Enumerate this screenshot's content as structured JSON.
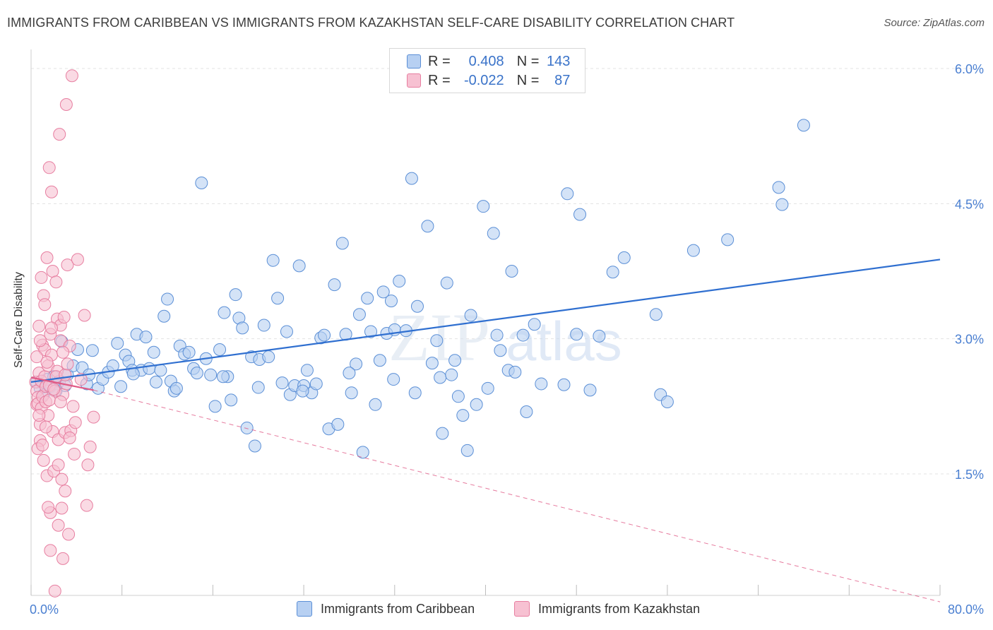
{
  "title": "IMMIGRANTS FROM CARIBBEAN VS IMMIGRANTS FROM KAZAKHSTAN SELF-CARE DISABILITY CORRELATION CHART",
  "source": "Source: ZipAtlas.com",
  "watermark": {
    "zip": "ZIP",
    "atlas": "atlas"
  },
  "colors": {
    "blue_fill": "#b7d0f2",
    "blue_stroke": "#5b8fd6",
    "blue_line": "#2f6fd0",
    "pink_fill": "#f7c1d2",
    "pink_stroke": "#e77ea0",
    "pink_line": "#e05a86",
    "axis_text": "#4a7fd1",
    "grid": "#e3e3e3"
  },
  "legend": {
    "rows": [
      {
        "r_label": "R =",
        "r_value": "0.408",
        "n_label": "N =",
        "n_value": "143",
        "color": "#b7d0f2",
        "stroke": "#5b8fd6"
      },
      {
        "r_label": "R =",
        "r_value": "-0.022",
        "n_label": "N =",
        "n_value": "87",
        "color": "#f7c1d2",
        "stroke": "#e77ea0"
      }
    ]
  },
  "bottom_legend": [
    {
      "label": "Immigrants from Caribbean",
      "color": "#b7d0f2",
      "stroke": "#5b8fd6"
    },
    {
      "label": "Immigrants from Kazakhstan",
      "color": "#f7c1d2",
      "stroke": "#e77ea0"
    }
  ],
  "chart_data": {
    "type": "scatter",
    "title": "IMMIGRANTS FROM CARIBBEAN VS IMMIGRANTS FROM KAZAKHSTAN SELF-CARE DISABILITY CORRELATION CHART",
    "xlabel": "",
    "ylabel": "Self-Care Disability",
    "xlim": [
      0,
      80
    ],
    "ylim": [
      0.0,
      6.3
    ],
    "x_tick_labels": [
      "0.0%",
      "80.0%"
    ],
    "y_ticks": [
      1.5,
      3.0,
      4.5,
      6.0
    ],
    "y_tick_labels": [
      "1.5%",
      "3.0%",
      "4.5%",
      "6.0%"
    ],
    "grid": true,
    "legend_position": "top-center",
    "series": [
      {
        "name": "Immigrants from Caribbean",
        "trendline": {
          "x": [
            0,
            80
          ],
          "y": [
            2.52,
            3.88
          ]
        },
        "points": [
          [
            0.5,
            2.52
          ],
          [
            0.8,
            2.45
          ],
          [
            1.1,
            2.38
          ],
          [
            1.4,
            2.55
          ],
          [
            1.7,
            2.47
          ],
          [
            2.0,
            2.58
          ],
          [
            2.3,
            2.5
          ],
          [
            2.7,
            2.97
          ],
          [
            3.2,
            2.6
          ],
          [
            3.7,
            2.7
          ],
          [
            4.1,
            2.88
          ],
          [
            4.5,
            2.68
          ],
          [
            4.9,
            2.5
          ],
          [
            5.4,
            2.87
          ],
          [
            5.9,
            2.45
          ],
          [
            6.3,
            2.55
          ],
          [
            6.8,
            2.63
          ],
          [
            7.2,
            2.7
          ],
          [
            7.6,
            2.95
          ],
          [
            7.9,
            2.47
          ],
          [
            8.3,
            2.82
          ],
          [
            8.6,
            2.75
          ],
          [
            8.9,
            2.65
          ],
          [
            9.3,
            3.05
          ],
          [
            9.7,
            2.65
          ],
          [
            10.1,
            3.02
          ],
          [
            10.4,
            2.67
          ],
          [
            10.8,
            2.85
          ],
          [
            11.0,
            2.52
          ],
          [
            11.4,
            2.65
          ],
          [
            11.7,
            3.25
          ],
          [
            12.0,
            3.44
          ],
          [
            12.3,
            2.53
          ],
          [
            12.6,
            2.42
          ],
          [
            13.1,
            2.92
          ],
          [
            13.5,
            2.83
          ],
          [
            13.9,
            2.85
          ],
          [
            14.3,
            2.67
          ],
          [
            14.6,
            2.62
          ],
          [
            15.0,
            4.73
          ],
          [
            15.4,
            2.78
          ],
          [
            15.8,
            2.6
          ],
          [
            16.2,
            2.25
          ],
          [
            16.6,
            2.88
          ],
          [
            17.0,
            3.29
          ],
          [
            17.3,
            2.58
          ],
          [
            17.6,
            2.32
          ],
          [
            18.0,
            3.49
          ],
          [
            18.3,
            3.23
          ],
          [
            18.6,
            3.12
          ],
          [
            19.0,
            2.01
          ],
          [
            19.4,
            2.8
          ],
          [
            19.7,
            1.81
          ],
          [
            20.1,
            2.77
          ],
          [
            20.5,
            3.15
          ],
          [
            20.9,
            2.8
          ],
          [
            21.3,
            3.87
          ],
          [
            21.7,
            3.45
          ],
          [
            22.1,
            2.51
          ],
          [
            22.5,
            3.08
          ],
          [
            22.8,
            2.38
          ],
          [
            23.2,
            2.48
          ],
          [
            23.6,
            3.81
          ],
          [
            24.0,
            2.48
          ],
          [
            24.3,
            2.65
          ],
          [
            24.7,
            2.4
          ],
          [
            25.1,
            2.5
          ],
          [
            25.5,
            3.01
          ],
          [
            25.8,
            3.04
          ],
          [
            26.2,
            2.0
          ],
          [
            26.7,
            3.6
          ],
          [
            27.0,
            2.05
          ],
          [
            27.4,
            4.06
          ],
          [
            27.7,
            3.05
          ],
          [
            28.2,
            2.4
          ],
          [
            28.6,
            2.72
          ],
          [
            28.9,
            3.27
          ],
          [
            29.2,
            1.74
          ],
          [
            29.6,
            3.45
          ],
          [
            29.9,
            3.08
          ],
          [
            30.3,
            2.27
          ],
          [
            30.7,
            2.76
          ],
          [
            31.0,
            3.52
          ],
          [
            31.3,
            3.06
          ],
          [
            31.7,
            3.42
          ],
          [
            32.0,
            3.1
          ],
          [
            32.4,
            3.64
          ],
          [
            33.0,
            3.09
          ],
          [
            33.5,
            4.78
          ],
          [
            33.8,
            2.4
          ],
          [
            34.0,
            3.36
          ],
          [
            34.9,
            4.25
          ],
          [
            35.3,
            2.73
          ],
          [
            35.7,
            2.98
          ],
          [
            36.0,
            2.57
          ],
          [
            36.2,
            1.95
          ],
          [
            36.6,
            3.62
          ],
          [
            37.0,
            2.6
          ],
          [
            37.3,
            2.76
          ],
          [
            37.6,
            2.36
          ],
          [
            38.0,
            2.15
          ],
          [
            38.4,
            1.76
          ],
          [
            38.7,
            3.26
          ],
          [
            39.2,
            2.27
          ],
          [
            39.8,
            4.47
          ],
          [
            40.7,
            4.17
          ],
          [
            41.0,
            3.04
          ],
          [
            41.3,
            2.87
          ],
          [
            42.0,
            2.65
          ],
          [
            42.3,
            3.75
          ],
          [
            42.6,
            2.63
          ],
          [
            43.3,
            3.04
          ],
          [
            43.6,
            2.19
          ],
          [
            44.3,
            3.16
          ],
          [
            44.9,
            2.5
          ],
          [
            46.9,
            2.49
          ],
          [
            47.2,
            4.61
          ],
          [
            48.0,
            3.05
          ],
          [
            48.3,
            4.38
          ],
          [
            49.2,
            2.43
          ],
          [
            50.0,
            3.03
          ],
          [
            51.2,
            3.74
          ],
          [
            52.2,
            3.9
          ],
          [
            55.0,
            3.27
          ],
          [
            55.4,
            2.38
          ],
          [
            56.0,
            2.3
          ],
          [
            58.3,
            3.98
          ],
          [
            61.3,
            4.1
          ],
          [
            65.8,
            4.68
          ],
          [
            66.1,
            4.49
          ],
          [
            68.0,
            5.37
          ],
          [
            2.2,
            2.42
          ],
          [
            2.5,
            2.53
          ],
          [
            3.0,
            2.48
          ],
          [
            5.1,
            2.6
          ],
          [
            9.0,
            2.61
          ],
          [
            12.8,
            2.45
          ],
          [
            16.9,
            2.58
          ],
          [
            20.0,
            2.46
          ],
          [
            23.9,
            2.42
          ],
          [
            28.0,
            2.62
          ],
          [
            31.9,
            2.55
          ],
          [
            40.2,
            2.45
          ]
        ]
      },
      {
        "name": "Immigrants from Kazakhstan",
        "trendline": {
          "x": [
            0,
            5.5
          ],
          "y": [
            2.57,
            2.43
          ],
          "dashed_extension": {
            "x": [
              5.5,
              80
            ],
            "y": [
              2.43,
              0.08
            ]
          }
        },
        "points": [
          [
            0.4,
            2.52
          ],
          [
            0.5,
            2.27
          ],
          [
            0.5,
            2.42
          ],
          [
            0.6,
            2.35
          ],
          [
            0.6,
            2.28
          ],
          [
            0.7,
            2.62
          ],
          [
            0.7,
            3.14
          ],
          [
            0.8,
            2.05
          ],
          [
            0.8,
            1.87
          ],
          [
            0.9,
            2.53
          ],
          [
            0.9,
            2.23
          ],
          [
            1.0,
            2.93
          ],
          [
            1.0,
            2.36
          ],
          [
            1.1,
            3.48
          ],
          [
            1.1,
            1.65
          ],
          [
            1.2,
            2.88
          ],
          [
            1.2,
            2.58
          ],
          [
            1.3,
            2.47
          ],
          [
            1.3,
            2.3
          ],
          [
            1.4,
            1.48
          ],
          [
            1.4,
            3.9
          ],
          [
            1.5,
            2.7
          ],
          [
            1.5,
            2.15
          ],
          [
            1.6,
            4.9
          ],
          [
            1.6,
            2.48
          ],
          [
            1.7,
            1.07
          ],
          [
            1.7,
            3.05
          ],
          [
            1.8,
            4.63
          ],
          [
            1.8,
            2.82
          ],
          [
            1.9,
            3.75
          ],
          [
            1.9,
            1.97
          ],
          [
            2.0,
            1.53
          ],
          [
            2.1,
            0.2
          ],
          [
            2.1,
            2.42
          ],
          [
            2.2,
            3.63
          ],
          [
            2.3,
            3.22
          ],
          [
            2.3,
            2.64
          ],
          [
            2.4,
            1.88
          ],
          [
            2.4,
            0.93
          ],
          [
            2.5,
            5.27
          ],
          [
            2.6,
            3.15
          ],
          [
            2.6,
            2.98
          ],
          [
            2.7,
            1.44
          ],
          [
            2.7,
            1.12
          ],
          [
            2.8,
            2.38
          ],
          [
            2.8,
            0.56
          ],
          [
            2.9,
            3.24
          ],
          [
            3.0,
            1.96
          ],
          [
            3.0,
            1.31
          ],
          [
            3.1,
            5.6
          ],
          [
            3.1,
            2.5
          ],
          [
            3.2,
            3.82
          ],
          [
            3.3,
            0.83
          ],
          [
            3.4,
            2.92
          ],
          [
            3.5,
            1.98
          ],
          [
            3.6,
            5.92
          ],
          [
            3.7,
            2.25
          ],
          [
            3.8,
            1.72
          ],
          [
            3.9,
            2.07
          ],
          [
            4.1,
            3.88
          ],
          [
            4.4,
            2.55
          ],
          [
            4.7,
            3.26
          ],
          [
            4.9,
            1.15
          ],
          [
            5.2,
            1.8
          ],
          [
            5.5,
            2.13
          ],
          [
            0.5,
            2.8
          ],
          [
            0.6,
            1.78
          ],
          [
            0.7,
            2.15
          ],
          [
            0.8,
            2.98
          ],
          [
            0.9,
            3.68
          ],
          [
            1.0,
            1.82
          ],
          [
            1.2,
            3.38
          ],
          [
            1.3,
            2.02
          ],
          [
            1.4,
            2.74
          ],
          [
            1.5,
            1.13
          ],
          [
            1.6,
            2.32
          ],
          [
            1.7,
            0.65
          ],
          [
            1.8,
            3.12
          ],
          [
            2.0,
            2.44
          ],
          [
            2.2,
            2.58
          ],
          [
            2.4,
            1.6
          ],
          [
            2.6,
            2.3
          ],
          [
            2.8,
            2.85
          ],
          [
            3.0,
            2.6
          ],
          [
            3.2,
            2.72
          ],
          [
            3.4,
            1.9
          ],
          [
            5.0,
            1.6
          ]
        ]
      }
    ]
  }
}
